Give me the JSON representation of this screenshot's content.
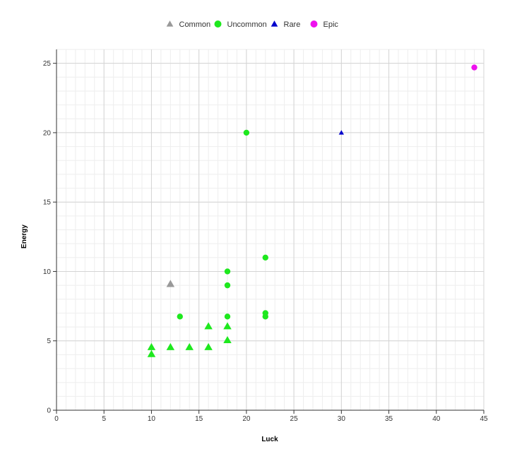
{
  "chart_data": {
    "type": "scatter",
    "title": "",
    "xlabel": "Luck",
    "ylabel": "Energy",
    "xlim": [
      0,
      45
    ],
    "ylim": [
      0,
      26
    ],
    "x_ticks": [
      0,
      5,
      10,
      15,
      20,
      25,
      30,
      35,
      40,
      45
    ],
    "y_ticks": [
      0,
      5,
      10,
      15,
      20,
      25
    ],
    "grid": true,
    "minor_grid": true,
    "legend_position": "top-center",
    "series": [
      {
        "name": "Common",
        "color": "#999999",
        "marker": "triangle",
        "points": [
          {
            "x": 12,
            "y": 9.1
          }
        ]
      },
      {
        "name": "Uncommon",
        "color": "#1ee81e",
        "marker": "circle",
        "points": [
          {
            "x": 20,
            "y": 20
          },
          {
            "x": 22,
            "y": 11
          },
          {
            "x": 18,
            "y": 10
          },
          {
            "x": 18,
            "y": 9
          },
          {
            "x": 13,
            "y": 6.75
          },
          {
            "x": 18,
            "y": 6.75
          },
          {
            "x": 22,
            "y": 7
          },
          {
            "x": 22,
            "y": 6.75
          }
        ]
      },
      {
        "name": "Uncommon",
        "color": "#1ee81e",
        "marker": "triangle",
        "legend": false,
        "points": [
          {
            "x": 10,
            "y": 4.55
          },
          {
            "x": 10,
            "y": 4.05
          },
          {
            "x": 12,
            "y": 4.55
          },
          {
            "x": 14,
            "y": 4.55
          },
          {
            "x": 16,
            "y": 4.55
          },
          {
            "x": 16,
            "y": 6.05
          },
          {
            "x": 18,
            "y": 6.05
          },
          {
            "x": 18,
            "y": 5.05
          }
        ]
      },
      {
        "name": "Rare",
        "color": "#0000cc",
        "marker": "triangle",
        "points": [
          {
            "x": 30,
            "y": 20
          }
        ]
      },
      {
        "name": "Epic",
        "color": "#ee11ee",
        "marker": "circle",
        "points": [
          {
            "x": 44,
            "y": 24.7
          }
        ]
      }
    ],
    "legend": [
      {
        "name": "Common",
        "color": "#999999",
        "marker": "triangle"
      },
      {
        "name": "Uncommon",
        "color": "#1ee81e",
        "marker": "circle"
      },
      {
        "name": "Rare",
        "color": "#0000cc",
        "marker": "triangle"
      },
      {
        "name": "Epic",
        "color": "#ee11ee",
        "marker": "circle"
      }
    ]
  }
}
